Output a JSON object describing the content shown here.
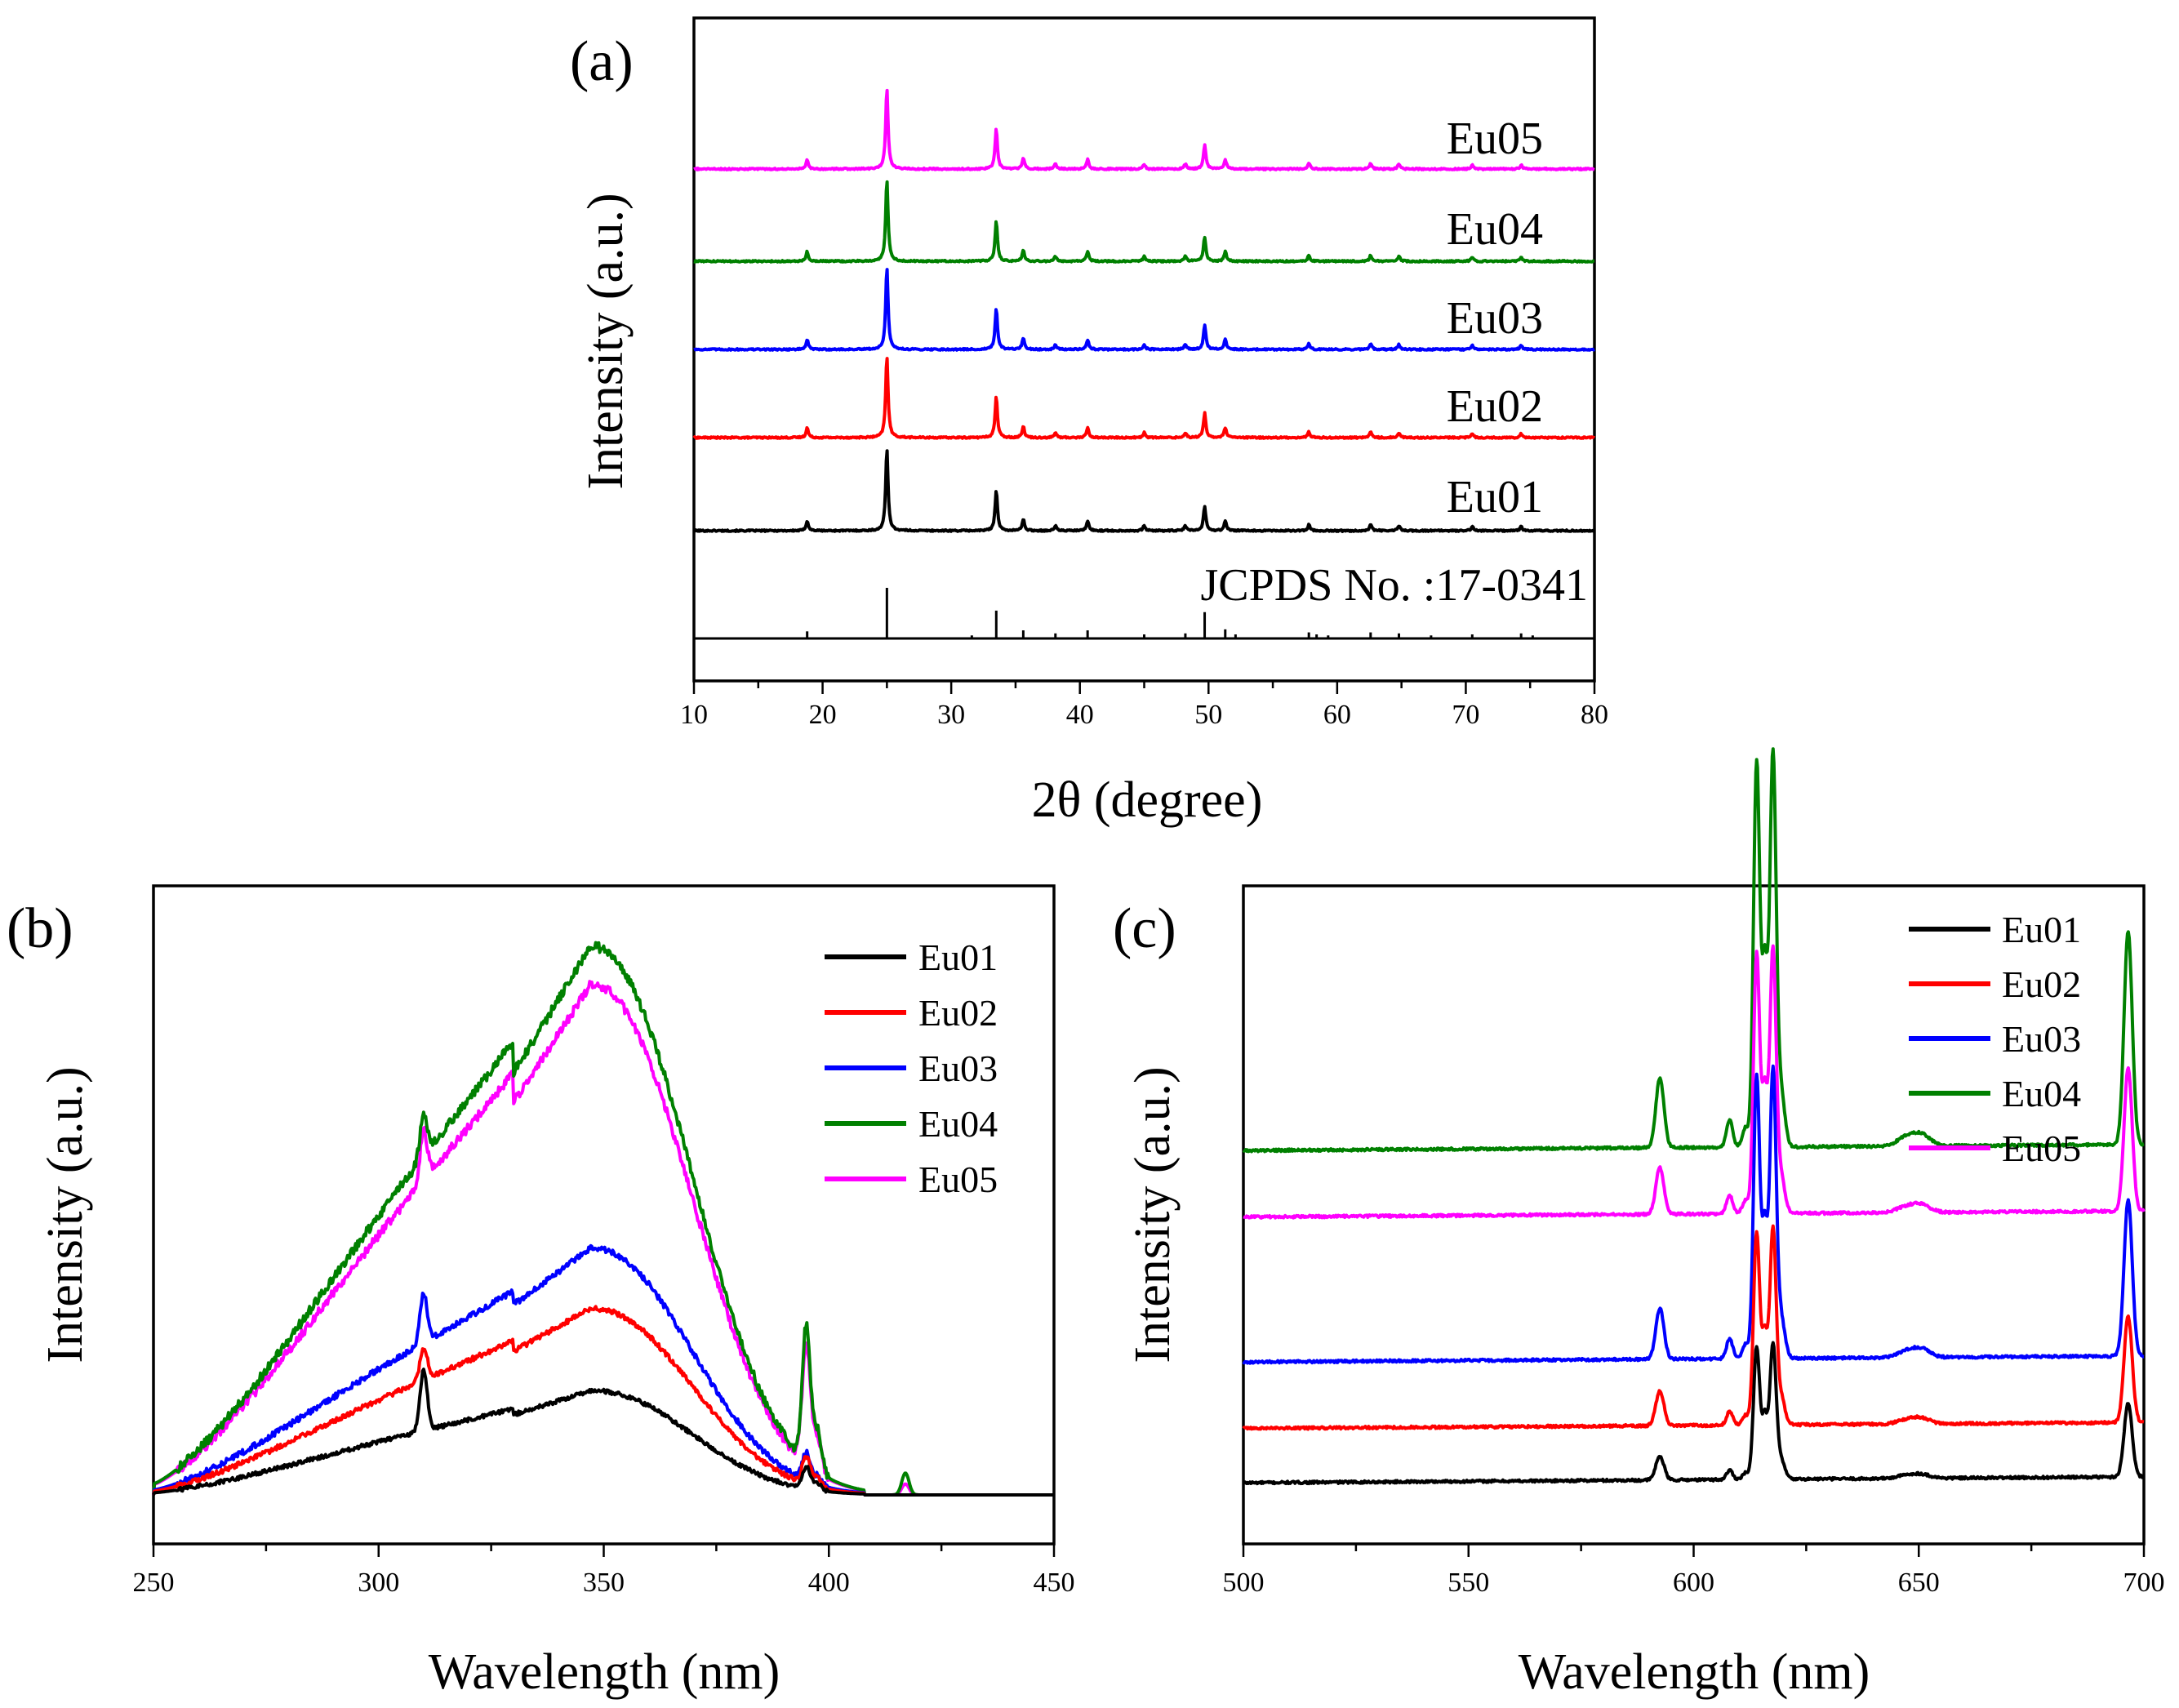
{
  "colors": {
    "Eu01": "#000000",
    "Eu02": "#ff0000",
    "Eu03": "#0000ff",
    "Eu04": "#008000",
    "Eu05": "#ff00ff"
  },
  "chart_data": [
    {
      "id": "a",
      "panel_label": "(a)",
      "type": "line",
      "xlabel": "2θ (degree)",
      "ylabel": "Intensity (a.u.)",
      "xlim": [
        10,
        80
      ],
      "xticks": [
        "10",
        "20",
        "30",
        "40",
        "50",
        "60",
        "70",
        "80"
      ],
      "reference": {
        "label": "JCPDS No. :17-0341",
        "positions": [
          18.8,
          25.0,
          31.6,
          33.5,
          35.6,
          38.1,
          40.6,
          45.0,
          48.2,
          49.7,
          51.3,
          52.1,
          57.8,
          58.4,
          59.3,
          62.6,
          64.8,
          67.3,
          70.5,
          74.3,
          75.2
        ],
        "heights": [
          0.14,
          1.0,
          0.06,
          0.55,
          0.16,
          0.1,
          0.16,
          0.08,
          0.1,
          0.52,
          0.18,
          0.08,
          0.12,
          0.08,
          0.06,
          0.12,
          0.1,
          0.06,
          0.08,
          0.1,
          0.06
        ]
      },
      "peaks": {
        "positions": [
          18.8,
          25.0,
          33.5,
          35.6,
          38.1,
          40.6,
          45.0,
          48.2,
          49.7,
          51.3,
          57.8,
          62.6,
          64.8,
          70.5,
          74.3
        ],
        "heights": [
          0.12,
          1.0,
          0.5,
          0.14,
          0.06,
          0.12,
          0.06,
          0.06,
          0.3,
          0.12,
          0.07,
          0.07,
          0.06,
          0.05,
          0.05
        ]
      },
      "series": [
        {
          "name": "Eu01",
          "scale": 1.0
        },
        {
          "name": "Eu02",
          "scale": 1.0
        },
        {
          "name": "Eu03",
          "scale": 1.0
        },
        {
          "name": "Eu04",
          "scale": 1.0
        },
        {
          "name": "Eu05",
          "scale": 0.98
        }
      ],
      "legend": "inline-right"
    },
    {
      "id": "b",
      "panel_label": "(b)",
      "type": "line",
      "xlabel": "Wavelength (nm)",
      "ylabel": "Intensity (a.u.)",
      "xlim": [
        250,
        450
      ],
      "xticks": [
        "250",
        "300",
        "350",
        "400",
        "450"
      ],
      "legend": "top-right",
      "series": [
        {
          "name": "Eu01",
          "band_peak": 0.19,
          "line_310": 0.11,
          "line_395": 0.04,
          "line_417": 0.0
        },
        {
          "name": "Eu02",
          "band_peak": 0.34,
          "line_310": 0.06,
          "line_395": 0.05,
          "line_417": 0.0
        },
        {
          "name": "Eu03",
          "band_peak": 0.45,
          "line_310": 0.09,
          "line_395": 0.05,
          "line_417": 0.0
        },
        {
          "name": "Eu04",
          "band_peak": 1.0,
          "line_310": 0.08,
          "line_395": 0.25,
          "line_417": 0.04
        },
        {
          "name": "Eu05",
          "band_peak": 0.93,
          "line_310": 0.09,
          "line_395": 0.22,
          "line_417": 0.02
        }
      ]
    },
    {
      "id": "c",
      "panel_label": "(c)",
      "type": "line",
      "xlabel": "Wavelength (nm)",
      "ylabel": "Intensity (a.u.)",
      "xlim": [
        500,
        700
      ],
      "xticks": [
        "500",
        "550",
        "600",
        "650",
        "700"
      ],
      "legend": "top-right",
      "series": [
        {
          "name": "Eu01",
          "baseline": 0.07,
          "scale": 0.22
        },
        {
          "name": "Eu02",
          "baseline": 0.16,
          "scale": 0.32
        },
        {
          "name": "Eu03",
          "baseline": 0.27,
          "scale": 0.47
        },
        {
          "name": "Eu04",
          "baseline": 0.62,
          "scale": 0.64
        },
        {
          "name": "Eu05",
          "baseline": 0.51,
          "scale": 0.43
        }
      ]
    }
  ]
}
